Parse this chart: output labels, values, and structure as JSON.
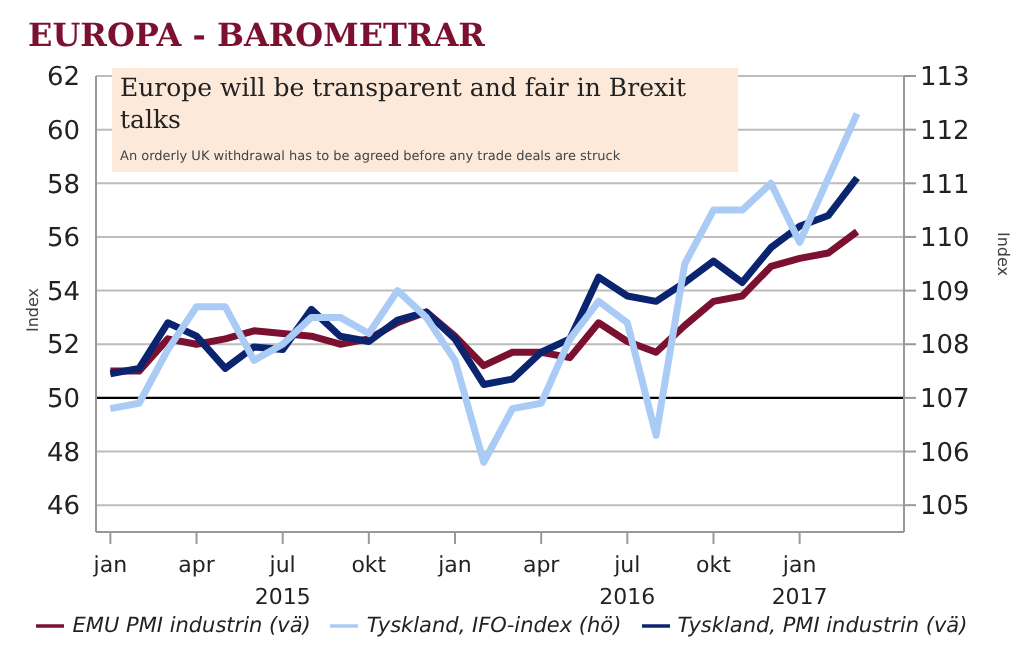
{
  "chart_data": {
    "type": "line",
    "title": "EUROPA - BAROMETRAR",
    "annotations": [
      "Europe will be transparent and fair in Brexit talks",
      "An orderly UK withdrawal has to be agreed before any trade deals are struck"
    ],
    "ylabel": "Index",
    "y2label": "Index",
    "x": [
      "2015-01",
      "2015-02",
      "2015-03",
      "2015-04",
      "2015-05",
      "2015-06",
      "2015-07",
      "2015-08",
      "2015-09",
      "2015-10",
      "2015-11",
      "2015-12",
      "2016-01",
      "2016-02",
      "2016-03",
      "2016-04",
      "2016-05",
      "2016-06",
      "2016-07",
      "2016-08",
      "2016-09",
      "2016-10",
      "2016-11",
      "2016-12",
      "2017-01",
      "2017-02",
      "2017-03"
    ],
    "series": [
      {
        "name": "EMU PMI industrin (vä)",
        "color": "#7b1030",
        "values": [
          51.0,
          51.0,
          52.2,
          52.0,
          52.2,
          52.5,
          52.4,
          52.3,
          52.0,
          52.2,
          52.8,
          53.2,
          52.3,
          51.2,
          51.7,
          51.7,
          51.5,
          52.8,
          52.1,
          51.7,
          52.7,
          53.6,
          53.8,
          54.9,
          55.2,
          55.4,
          56.2
        ]
      },
      {
        "name": "Tyskland, PMI industrin (vä)",
        "color": "#0a2470",
        "values": [
          50.9,
          51.1,
          52.8,
          52.3,
          51.1,
          51.9,
          51.8,
          53.3,
          52.3,
          52.1,
          52.9,
          53.2,
          52.2,
          50.5,
          50.7,
          51.7,
          52.2,
          54.5,
          53.8,
          53.6,
          54.3,
          55.1,
          54.3,
          55.6,
          56.4,
          56.8,
          58.2
        ]
      },
      {
        "name": "Tyskland, IFO-index (hö)",
        "color": "#a9cbf5",
        "axis": "y2",
        "values": [
          106.8,
          106.9,
          107.9,
          108.7,
          108.7,
          107.7,
          108.0,
          108.5,
          108.5,
          108.2,
          109.0,
          108.5,
          107.7,
          105.8,
          106.8,
          106.9,
          108.1,
          108.8,
          108.4,
          106.3,
          109.5,
          110.5,
          110.5,
          111.0,
          109.9,
          111.1,
          112.3
        ]
      }
    ],
    "xlim": [
      "2014-12-16",
      "2017-04-20"
    ],
    "xticks": [
      {
        "value": "2015-01",
        "label": "jan"
      },
      {
        "value": "2015-04",
        "label": "apr"
      },
      {
        "value": "2015-07",
        "label": "jul\n2015"
      },
      {
        "value": "2015-10",
        "label": "okt"
      },
      {
        "value": "2016-01",
        "label": "jan"
      },
      {
        "value": "2016-04",
        "label": "apr"
      },
      {
        "value": "2016-07",
        "label": "jul\n2016"
      },
      {
        "value": "2016-10",
        "label": "okt"
      },
      {
        "value": "2017-01",
        "label": "jan\n2017"
      }
    ],
    "ylim": [
      45,
      62
    ],
    "yticks": [
      46,
      48,
      50,
      52,
      54,
      56,
      58,
      60,
      62
    ],
    "y2lim": [
      104.5,
      113
    ],
    "y2ticks": [
      105,
      106,
      107,
      108,
      109,
      110,
      111,
      112,
      113
    ],
    "ref_lines": [
      {
        "axis": "y",
        "value": 50,
        "color": "#000000"
      }
    ],
    "grid": "y",
    "legend": "bottom",
    "marker": "none",
    "line_style": "solid"
  }
}
